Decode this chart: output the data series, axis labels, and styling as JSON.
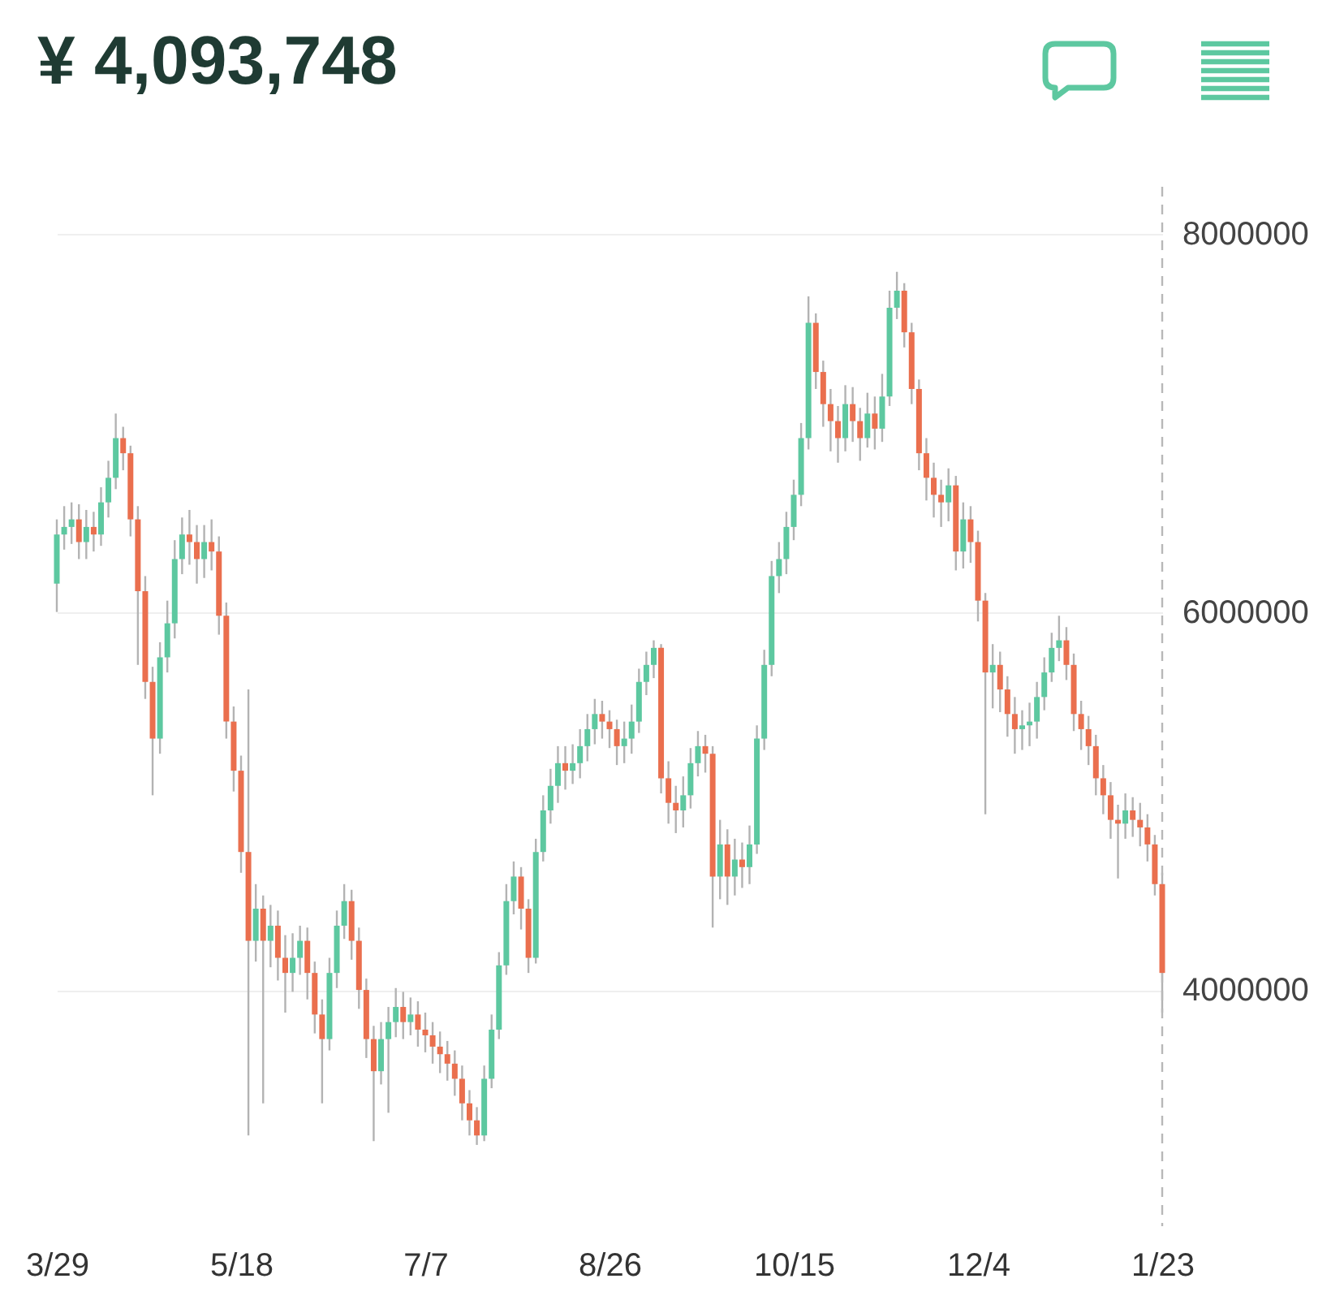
{
  "chart_data": {
    "type": "candlestick",
    "title": "¥ 4,093,748",
    "categories": [
      "3/29",
      null,
      null,
      null,
      null,
      null,
      null,
      null,
      null,
      null,
      null,
      null,
      null,
      null,
      null,
      null,
      null,
      null,
      null,
      null,
      null,
      null,
      null,
      null,
      null,
      "5/18",
      null,
      null,
      null,
      null,
      null,
      null,
      null,
      null,
      null,
      null,
      null,
      null,
      null,
      null,
      null,
      null,
      null,
      null,
      null,
      null,
      null,
      null,
      null,
      null,
      "7/7",
      null,
      null,
      null,
      null,
      null,
      null,
      null,
      null,
      null,
      null,
      null,
      null,
      null,
      null,
      null,
      null,
      null,
      null,
      null,
      null,
      null,
      null,
      null,
      null,
      "8/26",
      null,
      null,
      null,
      null,
      null,
      null,
      null,
      null,
      null,
      null,
      null,
      null,
      null,
      null,
      null,
      null,
      null,
      null,
      null,
      null,
      null,
      null,
      null,
      null,
      "10/15",
      null,
      null,
      null,
      null,
      null,
      null,
      null,
      null,
      null,
      null,
      null,
      null,
      null,
      null,
      null,
      null,
      null,
      null,
      null,
      null,
      null,
      null,
      null,
      null,
      "12/4",
      null,
      null,
      null,
      null,
      null,
      null,
      null,
      null,
      null,
      null,
      null,
      null,
      null,
      null,
      null,
      null,
      null,
      null,
      null,
      null,
      null,
      null,
      null,
      null,
      "1/23"
    ],
    "ohlc": [
      [
        6150000,
        6490000,
        6000000,
        6410000
      ],
      [
        6410000,
        6560000,
        6330000,
        6450000
      ],
      [
        6450000,
        6580000,
        6360000,
        6490000
      ],
      [
        6490000,
        6570000,
        6280000,
        6370000
      ],
      [
        6370000,
        6540000,
        6280000,
        6450000
      ],
      [
        6450000,
        6530000,
        6320000,
        6410000
      ],
      [
        6410000,
        6660000,
        6350000,
        6580000
      ],
      [
        6580000,
        6800000,
        6500000,
        6710000
      ],
      [
        6710000,
        7050000,
        6650000,
        6920000
      ],
      [
        6920000,
        6980000,
        6750000,
        6840000
      ],
      [
        6840000,
        6880000,
        6400000,
        6490000
      ],
      [
        6490000,
        6560000,
        5720000,
        6110000
      ],
      [
        6110000,
        6190000,
        5540000,
        5630000
      ],
      [
        5630000,
        5710000,
        5030000,
        5330000
      ],
      [
        5330000,
        5840000,
        5250000,
        5760000
      ],
      [
        5760000,
        6060000,
        5680000,
        5940000
      ],
      [
        5940000,
        6380000,
        5860000,
        6280000
      ],
      [
        6280000,
        6500000,
        6200000,
        6410000
      ],
      [
        6410000,
        6540000,
        6250000,
        6370000
      ],
      [
        6370000,
        6460000,
        6150000,
        6280000
      ],
      [
        6280000,
        6460000,
        6180000,
        6370000
      ],
      [
        6370000,
        6490000,
        6220000,
        6320000
      ],
      [
        6320000,
        6400000,
        5880000,
        5980000
      ],
      [
        5980000,
        6050000,
        5330000,
        5420000
      ],
      [
        5420000,
        5500000,
        5050000,
        5160000
      ],
      [
        5160000,
        5240000,
        4620000,
        4730000
      ],
      [
        4730000,
        5590000,
        3230000,
        4260000
      ],
      [
        4260000,
        4560000,
        4150000,
        4430000
      ],
      [
        4430000,
        4500000,
        3400000,
        4260000
      ],
      [
        4260000,
        4450000,
        4120000,
        4340000
      ],
      [
        4340000,
        4420000,
        4050000,
        4170000
      ],
      [
        4170000,
        4290000,
        3880000,
        4090000
      ],
      [
        4090000,
        4300000,
        3990000,
        4170000
      ],
      [
        4170000,
        4340000,
        4080000,
        4260000
      ],
      [
        4260000,
        4330000,
        3950000,
        4090000
      ],
      [
        4090000,
        4150000,
        3770000,
        3870000
      ],
      [
        3870000,
        3950000,
        3400000,
        3740000
      ],
      [
        3740000,
        4170000,
        3680000,
        4090000
      ],
      [
        4090000,
        4420000,
        4010000,
        4340000
      ],
      [
        4340000,
        4560000,
        4270000,
        4470000
      ],
      [
        4470000,
        4530000,
        4160000,
        4260000
      ],
      [
        4260000,
        4330000,
        3900000,
        4000000
      ],
      [
        4000000,
        4060000,
        3640000,
        3740000
      ],
      [
        3740000,
        3810000,
        3200000,
        3570000
      ],
      [
        3570000,
        3830000,
        3500000,
        3740000
      ],
      [
        3740000,
        3910000,
        3350000,
        3830000
      ],
      [
        3830000,
        4010000,
        3750000,
        3910000
      ],
      [
        3910000,
        3990000,
        3740000,
        3830000
      ],
      [
        3830000,
        3960000,
        3760000,
        3870000
      ],
      [
        3870000,
        3940000,
        3700000,
        3790000
      ],
      [
        3790000,
        3880000,
        3670000,
        3760000
      ],
      [
        3760000,
        3830000,
        3610000,
        3700000
      ],
      [
        3700000,
        3780000,
        3560000,
        3660000
      ],
      [
        3660000,
        3730000,
        3520000,
        3610000
      ],
      [
        3610000,
        3680000,
        3440000,
        3530000
      ],
      [
        3530000,
        3600000,
        3310000,
        3400000
      ],
      [
        3400000,
        3470000,
        3230000,
        3310000
      ],
      [
        3310000,
        3380000,
        3180000,
        3230000
      ],
      [
        3230000,
        3600000,
        3200000,
        3530000
      ],
      [
        3530000,
        3870000,
        3480000,
        3790000
      ],
      [
        3790000,
        4200000,
        3740000,
        4130000
      ],
      [
        4130000,
        4560000,
        4080000,
        4470000
      ],
      [
        4470000,
        4680000,
        4400000,
        4600000
      ],
      [
        4600000,
        4650000,
        4320000,
        4430000
      ],
      [
        4430000,
        4480000,
        4090000,
        4170000
      ],
      [
        4170000,
        4800000,
        4140000,
        4730000
      ],
      [
        4730000,
        5030000,
        4680000,
        4950000
      ],
      [
        4950000,
        5170000,
        4880000,
        5080000
      ],
      [
        5080000,
        5290000,
        4990000,
        5200000
      ],
      [
        5200000,
        5290000,
        5060000,
        5160000
      ],
      [
        5160000,
        5300000,
        5090000,
        5200000
      ],
      [
        5200000,
        5380000,
        5120000,
        5290000
      ],
      [
        5290000,
        5460000,
        5210000,
        5380000
      ],
      [
        5380000,
        5540000,
        5300000,
        5460000
      ],
      [
        5460000,
        5530000,
        5330000,
        5420000
      ],
      [
        5420000,
        5480000,
        5280000,
        5380000
      ],
      [
        5380000,
        5430000,
        5190000,
        5290000
      ],
      [
        5290000,
        5420000,
        5200000,
        5330000
      ],
      [
        5330000,
        5510000,
        5250000,
        5420000
      ],
      [
        5420000,
        5700000,
        5360000,
        5630000
      ],
      [
        5630000,
        5790000,
        5560000,
        5720000
      ],
      [
        5720000,
        5850000,
        5650000,
        5810000
      ],
      [
        5810000,
        5830000,
        5040000,
        5120000
      ],
      [
        5120000,
        5210000,
        4880000,
        4990000
      ],
      [
        4990000,
        5080000,
        4830000,
        4950000
      ],
      [
        4950000,
        5130000,
        4860000,
        5030000
      ],
      [
        5030000,
        5280000,
        4960000,
        5200000
      ],
      [
        5200000,
        5370000,
        5130000,
        5290000
      ],
      [
        5290000,
        5350000,
        5150000,
        5250000
      ],
      [
        5250000,
        5290000,
        4330000,
        4600000
      ],
      [
        4600000,
        4900000,
        4480000,
        4770000
      ],
      [
        4770000,
        4850000,
        4450000,
        4600000
      ],
      [
        4600000,
        4800000,
        4500000,
        4690000
      ],
      [
        4690000,
        4780000,
        4540000,
        4650000
      ],
      [
        4650000,
        4870000,
        4560000,
        4770000
      ],
      [
        4770000,
        5400000,
        4720000,
        5330000
      ],
      [
        5330000,
        5800000,
        5270000,
        5720000
      ],
      [
        5720000,
        6270000,
        5660000,
        6190000
      ],
      [
        6190000,
        6370000,
        6100000,
        6280000
      ],
      [
        6280000,
        6530000,
        6200000,
        6450000
      ],
      [
        6450000,
        6700000,
        6380000,
        6620000
      ],
      [
        6620000,
        7000000,
        6560000,
        6920000
      ],
      [
        6920000,
        7670000,
        6860000,
        7530000
      ],
      [
        7530000,
        7580000,
        7180000,
        7270000
      ],
      [
        7270000,
        7330000,
        6980000,
        7100000
      ],
      [
        7100000,
        7180000,
        6850000,
        7010000
      ],
      [
        7010000,
        7090000,
        6790000,
        6920000
      ],
      [
        6920000,
        7200000,
        6850000,
        7100000
      ],
      [
        7100000,
        7190000,
        6900000,
        7010000
      ],
      [
        7010000,
        7080000,
        6800000,
        6920000
      ],
      [
        6920000,
        7160000,
        6870000,
        7050000
      ],
      [
        7050000,
        7140000,
        6860000,
        6970000
      ],
      [
        6970000,
        7260000,
        6900000,
        7140000
      ],
      [
        7140000,
        7700000,
        7090000,
        7610000
      ],
      [
        7610000,
        7800000,
        7550000,
        7700000
      ],
      [
        7700000,
        7740000,
        7400000,
        7480000
      ],
      [
        7480000,
        7530000,
        7100000,
        7180000
      ],
      [
        7180000,
        7230000,
        6750000,
        6840000
      ],
      [
        6840000,
        6920000,
        6590000,
        6710000
      ],
      [
        6710000,
        6790000,
        6500000,
        6620000
      ],
      [
        6620000,
        6700000,
        6450000,
        6580000
      ],
      [
        6580000,
        6760000,
        6480000,
        6670000
      ],
      [
        6670000,
        6720000,
        6220000,
        6320000
      ],
      [
        6320000,
        6580000,
        6230000,
        6490000
      ],
      [
        6490000,
        6560000,
        6260000,
        6370000
      ],
      [
        6370000,
        6430000,
        5950000,
        6060000
      ],
      [
        6060000,
        6100000,
        4930000,
        5680000
      ],
      [
        5680000,
        5830000,
        5490000,
        5720000
      ],
      [
        5720000,
        5790000,
        5470000,
        5590000
      ],
      [
        5590000,
        5660000,
        5340000,
        5460000
      ],
      [
        5460000,
        5550000,
        5250000,
        5380000
      ],
      [
        5380000,
        5480000,
        5270000,
        5400000
      ],
      [
        5400000,
        5520000,
        5290000,
        5420000
      ],
      [
        5420000,
        5630000,
        5330000,
        5550000
      ],
      [
        5550000,
        5760000,
        5480000,
        5680000
      ],
      [
        5680000,
        5890000,
        5630000,
        5810000
      ],
      [
        5810000,
        5980000,
        5740000,
        5850000
      ],
      [
        5850000,
        5920000,
        5640000,
        5720000
      ],
      [
        5720000,
        5780000,
        5370000,
        5460000
      ],
      [
        5460000,
        5530000,
        5270000,
        5380000
      ],
      [
        5380000,
        5450000,
        5190000,
        5290000
      ],
      [
        5290000,
        5350000,
        5030000,
        5120000
      ],
      [
        5120000,
        5190000,
        4930000,
        5030000
      ],
      [
        5030000,
        5100000,
        4800000,
        4900000
      ],
      [
        4900000,
        4980000,
        4590000,
        4880000
      ],
      [
        4880000,
        5040000,
        4800000,
        4950000
      ],
      [
        4950000,
        5020000,
        4810000,
        4900000
      ],
      [
        4900000,
        4990000,
        4760000,
        4860000
      ],
      [
        4860000,
        4930000,
        4680000,
        4770000
      ],
      [
        4770000,
        4820000,
        4500000,
        4560000
      ],
      [
        4560000,
        4620000,
        3880000,
        4090000
      ]
    ],
    "colors": [
      "#5dc8a0",
      "#5dc8a0",
      "#5dc8a0",
      "#ea6f4e",
      "#5dc8a0",
      "#ea6f4e",
      "#5dc8a0",
      "#5dc8a0",
      "#5dc8a0",
      "#ea6f4e",
      "#ea6f4e",
      "#ea6f4e",
      "#ea6f4e",
      "#ea6f4e",
      "#5dc8a0",
      "#5dc8a0",
      "#5dc8a0",
      "#5dc8a0",
      "#ea6f4e",
      "#ea6f4e",
      "#5dc8a0",
      "#ea6f4e",
      "#ea6f4e",
      "#ea6f4e",
      "#ea6f4e",
      "#ea6f4e",
      "#ea6f4e",
      "#5dc8a0",
      "#ea6f4e",
      "#5dc8a0",
      "#ea6f4e",
      "#ea6f4e",
      "#5dc8a0",
      "#5dc8a0",
      "#ea6f4e",
      "#ea6f4e",
      "#ea6f4e",
      "#5dc8a0",
      "#5dc8a0",
      "#5dc8a0",
      "#ea6f4e",
      "#ea6f4e",
      "#ea6f4e",
      "#ea6f4e",
      "#5dc8a0",
      "#5dc8a0",
      "#5dc8a0",
      "#ea6f4e",
      "#5dc8a0",
      "#ea6f4e",
      "#ea6f4e",
      "#ea6f4e",
      "#ea6f4e",
      "#ea6f4e",
      "#ea6f4e",
      "#ea6f4e",
      "#ea6f4e",
      "#ea6f4e",
      "#5dc8a0",
      "#5dc8a0",
      "#5dc8a0",
      "#5dc8a0",
      "#5dc8a0",
      "#ea6f4e",
      "#ea6f4e",
      "#5dc8a0",
      "#5dc8a0",
      "#5dc8a0",
      "#5dc8a0",
      "#ea6f4e",
      "#5dc8a0",
      "#5dc8a0",
      "#5dc8a0",
      "#5dc8a0",
      "#ea6f4e",
      "#ea6f4e",
      "#ea6f4e",
      "#5dc8a0",
      "#5dc8a0",
      "#5dc8a0",
      "#5dc8a0",
      "#5dc8a0",
      "#ea6f4e",
      "#ea6f4e",
      "#ea6f4e",
      "#5dc8a0",
      "#5dc8a0",
      "#5dc8a0",
      "#ea6f4e",
      "#ea6f4e",
      "#5dc8a0",
      "#ea6f4e",
      "#5dc8a0",
      "#ea6f4e",
      "#5dc8a0",
      "#5dc8a0",
      "#5dc8a0",
      "#5dc8a0",
      "#5dc8a0",
      "#5dc8a0",
      "#5dc8a0",
      "#5dc8a0",
      "#5dc8a0",
      "#ea6f4e",
      "#ea6f4e",
      "#ea6f4e",
      "#ea6f4e",
      "#5dc8a0",
      "#ea6f4e",
      "#ea6f4e",
      "#5dc8a0",
      "#ea6f4e",
      "#5dc8a0",
      "#5dc8a0",
      "#5dc8a0",
      "#ea6f4e",
      "#ea6f4e",
      "#ea6f4e",
      "#ea6f4e",
      "#ea6f4e",
      "#ea6f4e",
      "#5dc8a0",
      "#ea6f4e",
      "#5dc8a0",
      "#ea6f4e",
      "#ea6f4e",
      "#ea6f4e",
      "#5dc8a0",
      "#ea6f4e",
      "#ea6f4e",
      "#ea6f4e",
      "#5dc8a0",
      "#5dc8a0",
      "#5dc8a0",
      "#5dc8a0",
      "#5dc8a0",
      "#5dc8a0",
      "#ea6f4e",
      "#ea6f4e",
      "#ea6f4e",
      "#ea6f4e",
      "#ea6f4e",
      "#ea6f4e",
      "#ea6f4e",
      "#ea6f4e",
      "#5dc8a0",
      "#ea6f4e",
      "#ea6f4e",
      "#ea6f4e",
      "#ea6f4e",
      "#ea6f4e"
    ],
    "ylim": [
      2750000,
      8250000
    ],
    "yticks": [
      4000000,
      6000000,
      8000000
    ],
    "grid": "y",
    "ref_lines": [
      {
        "axis": "x",
        "value": "1/23",
        "line_style": "dashed",
        "color": "#b8b8b8"
      }
    ]
  }
}
